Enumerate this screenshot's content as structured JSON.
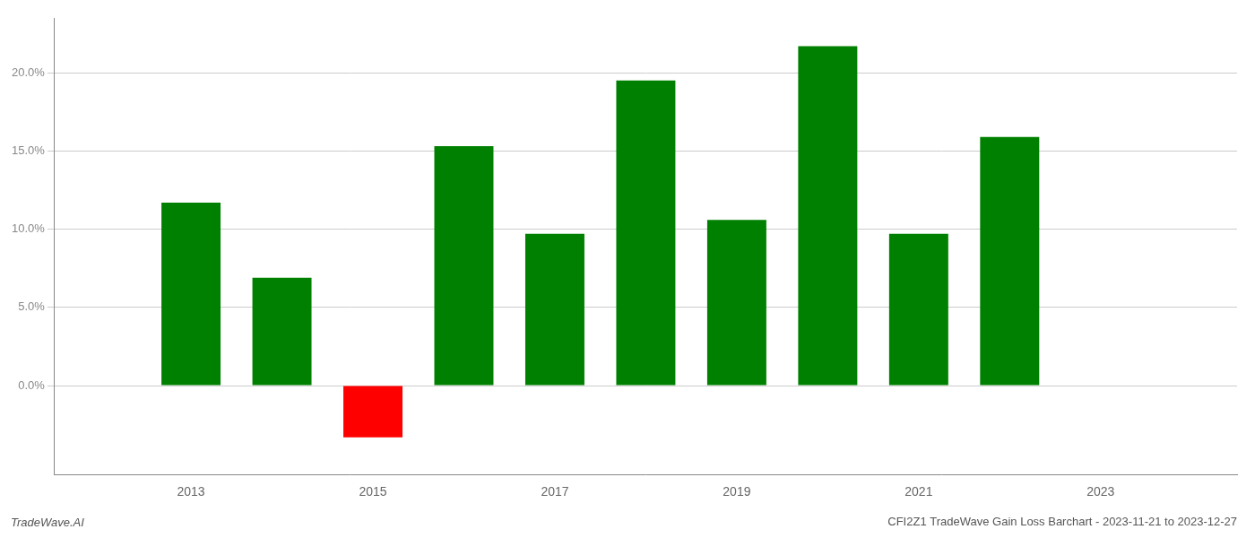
{
  "chart_data": {
    "type": "bar",
    "title": "CFI2Z1 TradeWave Gain Loss Barchart - 2023-11-21 to 2023-12-27",
    "annotations": [
      "TradeWave.AI"
    ],
    "x": [
      2013,
      2014,
      2015,
      2016,
      2017,
      2018,
      2019,
      2020,
      2021,
      2022
    ],
    "values": [
      0.117,
      0.069,
      -0.033,
      0.153,
      0.097,
      0.195,
      0.106,
      0.217,
      0.097,
      0.159
    ],
    "colors": [
      "#008000",
      "#008000",
      "#ff0000",
      "#008000",
      "#008000",
      "#008000",
      "#008000",
      "#008000",
      "#008000",
      "#008000"
    ],
    "xlim": [
      2011.5,
      2024.5
    ],
    "xticks": [
      2013,
      2015,
      2017,
      2019,
      2021,
      2023
    ],
    "ylim": [
      -0.057,
      0.235
    ],
    "yticks": [
      {
        "value": 0.0,
        "label": "0.0%"
      },
      {
        "value": 0.05,
        "label": "5.0%"
      },
      {
        "value": 0.1,
        "label": "10.0%"
      },
      {
        "value": 0.15,
        "label": "15.0%"
      },
      {
        "value": 0.2,
        "label": "20.0%"
      }
    ],
    "grid": true
  }
}
